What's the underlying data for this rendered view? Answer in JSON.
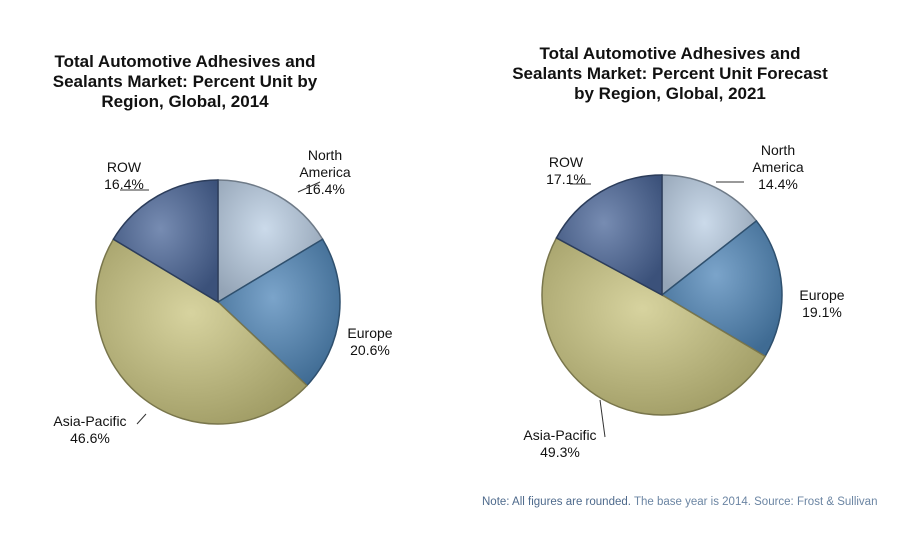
{
  "chart_data": [
    {
      "type": "pie",
      "title": "Total Automotive Adhesives and Sealants Market: Percent Unit by Region, Global, 2014",
      "title_lines": [
        "Total Automotive Adhesives and",
        "Sealants Market: Percent Unit by",
        "Region, Global, 2014"
      ],
      "slices": [
        {
          "label": "North America",
          "label_lines": [
            "North",
            "America"
          ],
          "value": 16.4,
          "display": "16.4%",
          "color": "#b9cde3"
        },
        {
          "label": "Europe",
          "label_lines": [
            "Europe"
          ],
          "value": 20.6,
          "display": "20.6%",
          "color": "#4f86b8"
        },
        {
          "label": "Asia-Pacific",
          "label_lines": [
            "Asia-Pacific"
          ],
          "value": 46.6,
          "display": "46.6%",
          "color": "#c9c47f"
        },
        {
          "label": "ROW",
          "label_lines": [
            "ROW"
          ],
          "value": 16.4,
          "display": "16.4%",
          "color": "#4a6598"
        }
      ]
    },
    {
      "type": "pie",
      "title": "Total Automotive Adhesives and Sealants Market: Percent Unit Forecast by Region, Global, 2021",
      "title_lines": [
        "Total Automotive Adhesives and",
        "Sealants Market: Percent Unit Forecast",
        "by Region, Global, 2021"
      ],
      "slices": [
        {
          "label": "North America",
          "label_lines": [
            "North",
            "America"
          ],
          "value": 14.4,
          "display": "14.4%",
          "color": "#b9cde3"
        },
        {
          "label": "Europe",
          "label_lines": [
            "Europe"
          ],
          "value": 19.1,
          "display": "19.1%",
          "color": "#4f86b8"
        },
        {
          "label": "Asia-Pacific",
          "label_lines": [
            "Asia-Pacific"
          ],
          "value": 49.3,
          "display": "49.3%",
          "color": "#c9c47f"
        },
        {
          "label": "ROW",
          "label_lines": [
            "ROW"
          ],
          "value": 17.1,
          "display": "17.1%",
          "color": "#4a6598"
        }
      ]
    }
  ],
  "note": {
    "part1": "Note: All figures are rounded.",
    "part2": " The base year is 2014. Source: Frost & Sullivan"
  }
}
